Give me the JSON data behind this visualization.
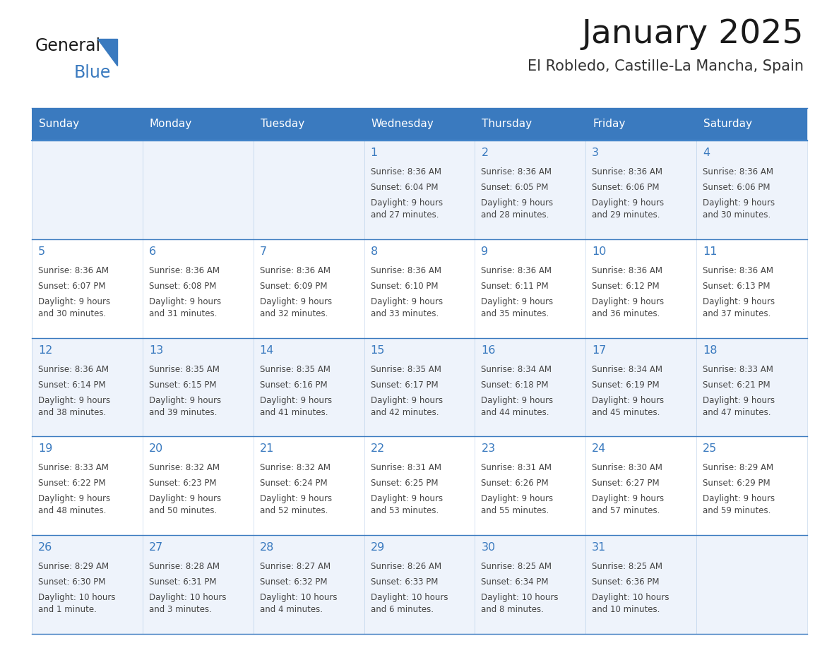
{
  "title": "January 2025",
  "subtitle": "El Robledo, Castille-La Mancha, Spain",
  "days_of_week": [
    "Sunday",
    "Monday",
    "Tuesday",
    "Wednesday",
    "Thursday",
    "Friday",
    "Saturday"
  ],
  "header_bg": "#3a7abf",
  "header_text": "#ffffff",
  "cell_bg_odd": "#eef3fb",
  "cell_bg_even": "#ffffff",
  "border_color": "#3a7abf",
  "title_color": "#1a1a1a",
  "subtitle_color": "#333333",
  "day_num_color": "#3a7abf",
  "cell_text_color": "#444444",
  "logo_general_color": "#1a1a1a",
  "logo_blue_color": "#3a7abf",
  "weeks": [
    {
      "days": [
        {
          "date": "",
          "sunrise": "",
          "sunset": "",
          "daylight": ""
        },
        {
          "date": "",
          "sunrise": "",
          "sunset": "",
          "daylight": ""
        },
        {
          "date": "",
          "sunrise": "",
          "sunset": "",
          "daylight": ""
        },
        {
          "date": "1",
          "sunrise": "8:36 AM",
          "sunset": "6:04 PM",
          "daylight": "9 hours\nand 27 minutes."
        },
        {
          "date": "2",
          "sunrise": "8:36 AM",
          "sunset": "6:05 PM",
          "daylight": "9 hours\nand 28 minutes."
        },
        {
          "date": "3",
          "sunrise": "8:36 AM",
          "sunset": "6:06 PM",
          "daylight": "9 hours\nand 29 minutes."
        },
        {
          "date": "4",
          "sunrise": "8:36 AM",
          "sunset": "6:06 PM",
          "daylight": "9 hours\nand 30 minutes."
        }
      ]
    },
    {
      "days": [
        {
          "date": "5",
          "sunrise": "8:36 AM",
          "sunset": "6:07 PM",
          "daylight": "9 hours\nand 30 minutes."
        },
        {
          "date": "6",
          "sunrise": "8:36 AM",
          "sunset": "6:08 PM",
          "daylight": "9 hours\nand 31 minutes."
        },
        {
          "date": "7",
          "sunrise": "8:36 AM",
          "sunset": "6:09 PM",
          "daylight": "9 hours\nand 32 minutes."
        },
        {
          "date": "8",
          "sunrise": "8:36 AM",
          "sunset": "6:10 PM",
          "daylight": "9 hours\nand 33 minutes."
        },
        {
          "date": "9",
          "sunrise": "8:36 AM",
          "sunset": "6:11 PM",
          "daylight": "9 hours\nand 35 minutes."
        },
        {
          "date": "10",
          "sunrise": "8:36 AM",
          "sunset": "6:12 PM",
          "daylight": "9 hours\nand 36 minutes."
        },
        {
          "date": "11",
          "sunrise": "8:36 AM",
          "sunset": "6:13 PM",
          "daylight": "9 hours\nand 37 minutes."
        }
      ]
    },
    {
      "days": [
        {
          "date": "12",
          "sunrise": "8:36 AM",
          "sunset": "6:14 PM",
          "daylight": "9 hours\nand 38 minutes."
        },
        {
          "date": "13",
          "sunrise": "8:35 AM",
          "sunset": "6:15 PM",
          "daylight": "9 hours\nand 39 minutes."
        },
        {
          "date": "14",
          "sunrise": "8:35 AM",
          "sunset": "6:16 PM",
          "daylight": "9 hours\nand 41 minutes."
        },
        {
          "date": "15",
          "sunrise": "8:35 AM",
          "sunset": "6:17 PM",
          "daylight": "9 hours\nand 42 minutes."
        },
        {
          "date": "16",
          "sunrise": "8:34 AM",
          "sunset": "6:18 PM",
          "daylight": "9 hours\nand 44 minutes."
        },
        {
          "date": "17",
          "sunrise": "8:34 AM",
          "sunset": "6:19 PM",
          "daylight": "9 hours\nand 45 minutes."
        },
        {
          "date": "18",
          "sunrise": "8:33 AM",
          "sunset": "6:21 PM",
          "daylight": "9 hours\nand 47 minutes."
        }
      ]
    },
    {
      "days": [
        {
          "date": "19",
          "sunrise": "8:33 AM",
          "sunset": "6:22 PM",
          "daylight": "9 hours\nand 48 minutes."
        },
        {
          "date": "20",
          "sunrise": "8:32 AM",
          "sunset": "6:23 PM",
          "daylight": "9 hours\nand 50 minutes."
        },
        {
          "date": "21",
          "sunrise": "8:32 AM",
          "sunset": "6:24 PM",
          "daylight": "9 hours\nand 52 minutes."
        },
        {
          "date": "22",
          "sunrise": "8:31 AM",
          "sunset": "6:25 PM",
          "daylight": "9 hours\nand 53 minutes."
        },
        {
          "date": "23",
          "sunrise": "8:31 AM",
          "sunset": "6:26 PM",
          "daylight": "9 hours\nand 55 minutes."
        },
        {
          "date": "24",
          "sunrise": "8:30 AM",
          "sunset": "6:27 PM",
          "daylight": "9 hours\nand 57 minutes."
        },
        {
          "date": "25",
          "sunrise": "8:29 AM",
          "sunset": "6:29 PM",
          "daylight": "9 hours\nand 59 minutes."
        }
      ]
    },
    {
      "days": [
        {
          "date": "26",
          "sunrise": "8:29 AM",
          "sunset": "6:30 PM",
          "daylight": "10 hours\nand 1 minute."
        },
        {
          "date": "27",
          "sunrise": "8:28 AM",
          "sunset": "6:31 PM",
          "daylight": "10 hours\nand 3 minutes."
        },
        {
          "date": "28",
          "sunrise": "8:27 AM",
          "sunset": "6:32 PM",
          "daylight": "10 hours\nand 4 minutes."
        },
        {
          "date": "29",
          "sunrise": "8:26 AM",
          "sunset": "6:33 PM",
          "daylight": "10 hours\nand 6 minutes."
        },
        {
          "date": "30",
          "sunrise": "8:25 AM",
          "sunset": "6:34 PM",
          "daylight": "10 hours\nand 8 minutes."
        },
        {
          "date": "31",
          "sunrise": "8:25 AM",
          "sunset": "6:36 PM",
          "daylight": "10 hours\nand 10 minutes."
        },
        {
          "date": "",
          "sunrise": "",
          "sunset": "",
          "daylight": ""
        }
      ]
    }
  ]
}
